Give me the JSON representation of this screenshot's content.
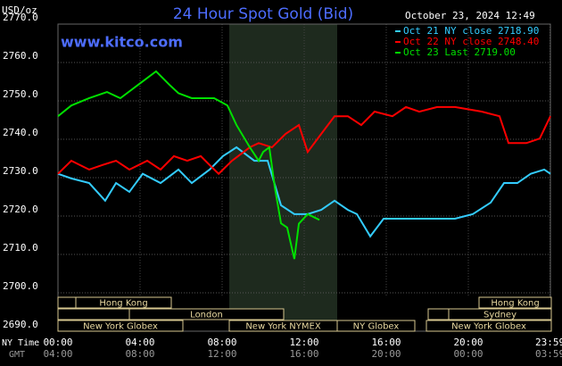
{
  "chart_data": {
    "type": "line",
    "title": "24 Hour Spot Gold (Bid)",
    "site": "www.kitco.com",
    "unit": "USD/oz",
    "timestamp": "October 23, 2024 12:49",
    "x_axis_label": "NY Time",
    "x2_axis_label": "GMT",
    "series": [
      {
        "name": "Oct 21 NY close 2718.90",
        "color": "#33ccff",
        "x": [
          0,
          0.65,
          1.52,
          2.3,
          2.83,
          3.48,
          4.13,
          5,
          5.87,
          6.52,
          7.39,
          8.04,
          8.7,
          9.57,
          10.22,
          10.87,
          11.52,
          12.17,
          12.83,
          13.48,
          14.13,
          14.57,
          15.22,
          15.87,
          16.74,
          18.04,
          19.35,
          20.22,
          21.09,
          21.74,
          22.39,
          23.04,
          23.7,
          24
        ],
        "values": [
          2731,
          2729.8,
          2728.6,
          2724,
          2728.6,
          2726.3,
          2731,
          2728.6,
          2732.1,
          2728.6,
          2732.1,
          2735.6,
          2737.9,
          2734.4,
          2734.4,
          2722.8,
          2720.5,
          2720.5,
          2721.6,
          2724,
          2721.6,
          2720.5,
          2714.7,
          2719.3,
          2719.3,
          2719.3,
          2719.3,
          2720.5,
          2723.5,
          2728.6,
          2728.6,
          2731,
          2732.1,
          2731
        ]
      },
      {
        "name": "Oct 22 NY close 2748.40",
        "color": "#ff0000",
        "x": [
          0,
          0.65,
          1.52,
          2.17,
          2.83,
          3.48,
          4.35,
          5,
          5.65,
          6.3,
          6.96,
          7.39,
          7.83,
          8.48,
          9.35,
          9.78,
          10.43,
          11.09,
          11.74,
          12.17,
          12.83,
          13.48,
          14.13,
          14.78,
          15.43,
          16.3,
          16.96,
          17.61,
          18.48,
          19.35,
          20.65,
          21.52,
          21.96,
          22.83,
          23.48,
          24
        ],
        "values": [
          2731,
          2734.4,
          2732.1,
          2733.3,
          2734.4,
          2732.1,
          2734.4,
          2732.1,
          2735.6,
          2734.4,
          2735.6,
          2733.3,
          2731,
          2734.4,
          2737.9,
          2739,
          2737.9,
          2741.4,
          2743.7,
          2736.7,
          2741.4,
          2746,
          2746,
          2743.7,
          2747.2,
          2746,
          2748.4,
          2747.2,
          2748.4,
          2748.4,
          2747.2,
          2746,
          2739,
          2739,
          2740.2,
          2746
        ]
      },
      {
        "name": "Oct 23 Last 2719.00",
        "color": "#00e000",
        "x": [
          0,
          0.65,
          1.52,
          2.39,
          3.04,
          3.91,
          4.78,
          5.43,
          5.87,
          6.52,
          7.61,
          8.26,
          8.7,
          9.35,
          9.78,
          10,
          10.3,
          10.57,
          10.87,
          11.17,
          11.52,
          11.74,
          12.17,
          12.74
        ],
        "values": [
          2746,
          2748.8,
          2750.7,
          2752.3,
          2750.7,
          2754.2,
          2757.7,
          2754.2,
          2752,
          2750.7,
          2750.7,
          2748.8,
          2743.7,
          2737.9,
          2734.4,
          2736.7,
          2737.9,
          2727.4,
          2718.1,
          2717,
          2708.8,
          2718,
          2720.5,
          2719
        ]
      }
    ],
    "xlim": [
      0,
      24
    ],
    "xticks": [
      {
        "value": 0,
        "label": "00:00"
      },
      {
        "value": 4,
        "label": "04:00"
      },
      {
        "value": 8,
        "label": "08:00"
      },
      {
        "value": 12,
        "label": "12:00"
      },
      {
        "value": 16,
        "label": "16:00"
      },
      {
        "value": 20,
        "label": "20:00"
      },
      {
        "value": 23.98,
        "label": "23:59"
      }
    ],
    "x2ticks": [
      {
        "value": 0,
        "label": "04:00"
      },
      {
        "value": 4,
        "label": "08:00"
      },
      {
        "value": 8,
        "label": "12:00"
      },
      {
        "value": 12,
        "label": "16:00"
      },
      {
        "value": 16,
        "label": "20:00"
      },
      {
        "value": 20,
        "label": "00:00"
      },
      {
        "value": 23.98,
        "label": "03:59"
      }
    ],
    "ylim": [
      2690,
      2770
    ],
    "yticks": [
      {
        "value": 2690,
        "label": "2690.0"
      },
      {
        "value": 2700,
        "label": "2700.0"
      },
      {
        "value": 2710,
        "label": "2710.0"
      },
      {
        "value": 2720,
        "label": "2720.0"
      },
      {
        "value": 2730,
        "label": "2730.0"
      },
      {
        "value": 2740,
        "label": "2740.0"
      },
      {
        "value": 2750,
        "label": "2750.0"
      },
      {
        "value": 2760,
        "label": "2760.0"
      },
      {
        "value": 2770,
        "label": "2770.0"
      }
    ],
    "grid": true,
    "sessions": [
      "Hong Kong",
      "London",
      "New York Globex",
      "New York NYMEX",
      "NY Globex",
      "New York Globex",
      "Hong Kong",
      "Sydney"
    ]
  }
}
